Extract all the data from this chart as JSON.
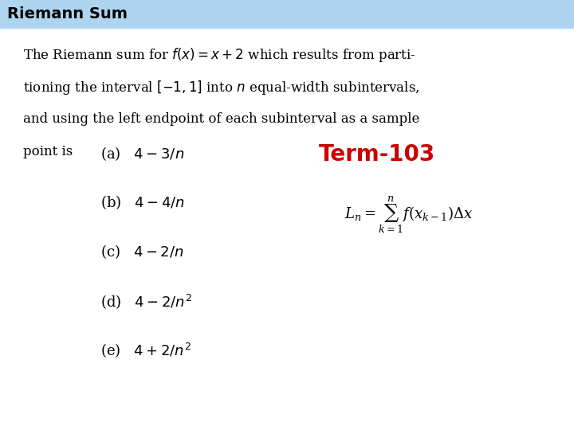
{
  "title": "Riemann Sum",
  "title_bg_color": "#aed4f0",
  "title_fontsize": 14,
  "body_bg_color": "#ffffff",
  "term_label": "Term-103",
  "term_color": "#cc0000",
  "term_fontsize": 20,
  "problem_lines": [
    "The Riemann sum for $f(x) = x+2$ which results from parti-",
    "tioning the interval $[-1, 1]$ into $n$ equal-width subintervals,",
    "and using the left endpoint of each subinterval as a sample",
    "point is"
  ],
  "choices": [
    "(a)   $4 - 3/n$",
    "(b)   $4 - 4/n$",
    "(c)   $4 - 2/n$",
    "(d)   $4 - 2/n^2$",
    "(e)   $4 + 2/n^2$"
  ],
  "text_fontsize": 12,
  "choice_fontsize": 13
}
